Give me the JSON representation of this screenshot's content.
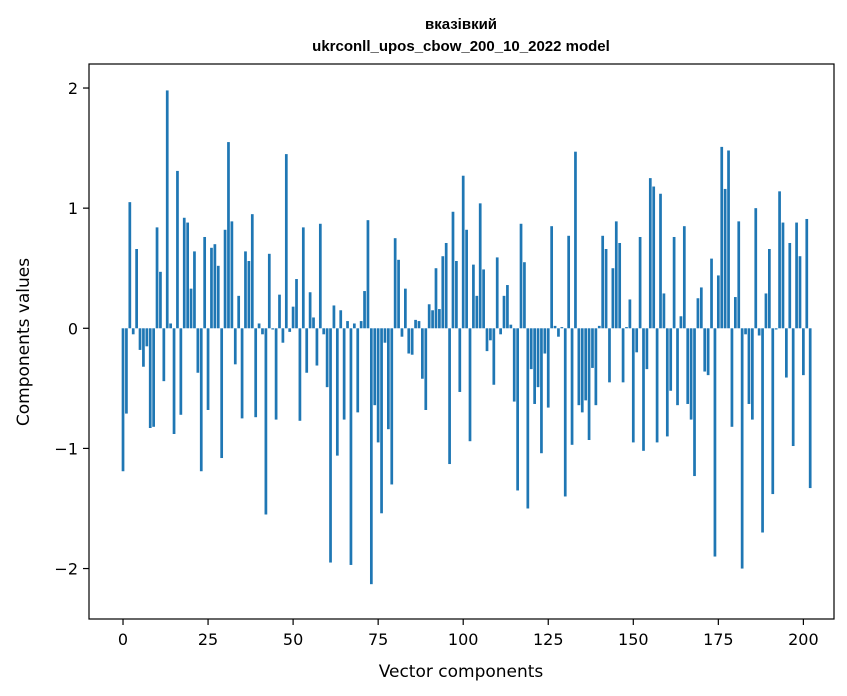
{
  "chart_data": {
    "type": "bar",
    "title_line1": "вказівкий",
    "title_line2": "ukrconll_upos_cbow_200_10_2022 model",
    "xlabel": "Vector components",
    "ylabel": "Components values",
    "xlim": [
      -10,
      209
    ],
    "ylim": [
      -2.42,
      2.2
    ],
    "xticks": [
      0,
      25,
      50,
      75,
      100,
      125,
      150,
      175,
      200
    ],
    "xtick_labels": [
      "0",
      "25",
      "50",
      "75",
      "100",
      "125",
      "150",
      "175",
      "200"
    ],
    "yticks": [
      -2,
      -1,
      0,
      1,
      2
    ],
    "ytick_labels": [
      "−2",
      "−1",
      "0",
      "1",
      "2"
    ],
    "grid": false,
    "bar_color": "#1f77b4",
    "values": [
      -1.19,
      -0.71,
      1.05,
      -0.05,
      0.66,
      -0.18,
      -0.32,
      -0.15,
      -0.83,
      -0.82,
      0.84,
      0.47,
      -0.44,
      1.98,
      0.04,
      -0.88,
      1.31,
      -0.72,
      0.92,
      0.88,
      0.33,
      0.64,
      -0.37,
      -1.19,
      0.76,
      -0.68,
      0.67,
      0.7,
      0.52,
      -1.08,
      0.82,
      1.55,
      0.89,
      -0.3,
      0.27,
      -0.75,
      0.64,
      0.56,
      0.95,
      -0.74,
      0.04,
      -0.05,
      -1.55,
      0.62,
      -0.01,
      -0.76,
      0.28,
      -0.12,
      1.45,
      -0.03,
      0.18,
      0.41,
      -0.77,
      0.84,
      -0.37,
      0.3,
      0.09,
      -0.31,
      0.87,
      -0.05,
      -0.49,
      -1.95,
      0.19,
      -1.06,
      0.15,
      -0.76,
      0.06,
      -1.97,
      0.04,
      -0.7,
      0.06,
      0.31,
      0.9,
      -2.13,
      -0.64,
      -0.95,
      -1.54,
      -0.12,
      -0.84,
      -1.3,
      0.75,
      0.57,
      -0.07,
      0.33,
      -0.21,
      -0.22,
      0.07,
      0.06,
      -0.42,
      -0.68,
      0.2,
      0.15,
      0.5,
      0.16,
      0.6,
      0.71,
      -1.13,
      0.97,
      0.56,
      -0.53,
      1.27,
      0.82,
      -0.94,
      0.53,
      0.27,
      1.04,
      0.49,
      -0.19,
      -0.1,
      -0.47,
      0.59,
      -0.05,
      0.27,
      0.36,
      0.03,
      -0.61,
      -1.35,
      0.87,
      0.55,
      -1.5,
      -0.34,
      -0.63,
      -0.49,
      -1.04,
      -0.21,
      -0.66,
      0.85,
      0.02,
      -0.07,
      0.01,
      -1.4,
      0.77,
      -0.97,
      1.47,
      -0.64,
      -0.7,
      -0.6,
      -0.93,
      -0.33,
      -0.64,
      0.02,
      0.77,
      0.66,
      -0.45,
      0.5,
      0.89,
      0.71,
      -0.45,
      0.01,
      0.24,
      -0.95,
      -0.2,
      0.76,
      -1.02,
      -0.34,
      1.25,
      1.18,
      -0.95,
      1.12,
      0.29,
      -0.9,
      -0.52,
      0.76,
      -0.64,
      0.1,
      0.85,
      -0.63,
      -0.76,
      -1.23,
      0.25,
      0.34,
      -0.36,
      -0.39,
      0.58,
      -1.9,
      0.44,
      1.51,
      1.16,
      1.48,
      -0.82,
      0.26,
      0.89,
      -2.0,
      -0.05,
      -0.63,
      -0.76,
      1.0,
      -0.06,
      -1.7,
      0.29,
      0.66,
      -1.38,
      -0.01,
      1.14,
      0.88,
      -0.41,
      0.71,
      -0.98,
      0.88,
      0.6,
      -0.39,
      0.91,
      -1.33
    ]
  }
}
